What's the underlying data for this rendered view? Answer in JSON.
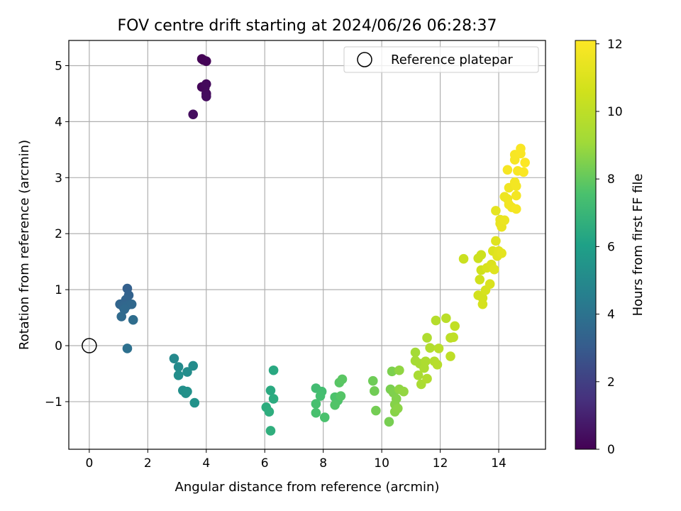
{
  "chart_data": {
    "type": "scatter",
    "title": "FOV centre drift starting at 2024/06/26 06:28:37",
    "xlabel": "Angular distance from reference (arcmin)",
    "ylabel": "Rotation from reference (arcmin)",
    "xlim": [
      -0.7,
      15.6
    ],
    "ylim": [
      -1.85,
      5.45
    ],
    "xticks": [
      0,
      2,
      4,
      6,
      8,
      10,
      12,
      14
    ],
    "yticks": [
      -1,
      0,
      1,
      2,
      3,
      4,
      5
    ],
    "xtick_labels": [
      "0",
      "2",
      "4",
      "6",
      "8",
      "10",
      "12",
      "14"
    ],
    "ytick_labels": [
      "−1",
      "0",
      "1",
      "2",
      "3",
      "4",
      "5"
    ],
    "grid": true,
    "legend": {
      "position": "top-right",
      "entries": [
        {
          "label": "Reference platepar",
          "marker": "open-circle"
        }
      ]
    },
    "reference_point": {
      "x": 0,
      "y": 0
    },
    "colorbar": {
      "label": "Hours from first FF file",
      "colormap": "viridis",
      "range": [
        0,
        12.1
      ],
      "ticks": [
        0,
        2,
        4,
        6,
        8,
        10,
        12
      ],
      "tick_labels": [
        "0",
        "2",
        "4",
        "6",
        "8",
        "10",
        "12"
      ]
    },
    "points": [
      {
        "x": 3.85,
        "y": 5.12,
        "c": 0.0
      },
      {
        "x": 3.9,
        "y": 5.1,
        "c": 0.05
      },
      {
        "x": 4.0,
        "y": 5.08,
        "c": 0.1
      },
      {
        "x": 3.85,
        "y": 4.62,
        "c": 0.15
      },
      {
        "x": 3.95,
        "y": 4.6,
        "c": 0.2
      },
      {
        "x": 4.0,
        "y": 4.67,
        "c": 0.25
      },
      {
        "x": 4.0,
        "y": 4.5,
        "c": 0.3
      },
      {
        "x": 4.0,
        "y": 4.45,
        "c": 0.35
      },
      {
        "x": 3.55,
        "y": 4.13,
        "c": 0.4
      },
      {
        "x": 1.3,
        "y": 1.02,
        "c": 3.2
      },
      {
        "x": 1.35,
        "y": 0.9,
        "c": 3.3
      },
      {
        "x": 1.25,
        "y": 0.82,
        "c": 3.35
      },
      {
        "x": 1.05,
        "y": 0.74,
        "c": 3.4
      },
      {
        "x": 1.15,
        "y": 0.7,
        "c": 3.45
      },
      {
        "x": 1.3,
        "y": 0.72,
        "c": 3.5
      },
      {
        "x": 1.45,
        "y": 0.74,
        "c": 3.55
      },
      {
        "x": 1.2,
        "y": 0.65,
        "c": 3.6
      },
      {
        "x": 1.1,
        "y": 0.52,
        "c": 3.65
      },
      {
        "x": 1.5,
        "y": 0.46,
        "c": 3.75
      },
      {
        "x": 1.3,
        "y": -0.05,
        "c": 3.9
      },
      {
        "x": 2.9,
        "y": -0.23,
        "c": 5.0
      },
      {
        "x": 3.05,
        "y": -0.38,
        "c": 5.05
      },
      {
        "x": 3.55,
        "y": -0.36,
        "c": 5.1
      },
      {
        "x": 3.35,
        "y": -0.47,
        "c": 5.15
      },
      {
        "x": 3.05,
        "y": -0.53,
        "c": 5.2
      },
      {
        "x": 3.2,
        "y": -0.8,
        "c": 5.25
      },
      {
        "x": 3.3,
        "y": -0.85,
        "c": 5.3
      },
      {
        "x": 3.35,
        "y": -0.82,
        "c": 5.35
      },
      {
        "x": 3.6,
        "y": -1.02,
        "c": 5.4
      },
      {
        "x": 6.3,
        "y": -0.44,
        "c": 6.4
      },
      {
        "x": 6.2,
        "y": -0.8,
        "c": 6.45
      },
      {
        "x": 6.3,
        "y": -0.95,
        "c": 6.5
      },
      {
        "x": 6.05,
        "y": -1.1,
        "c": 6.55
      },
      {
        "x": 6.15,
        "y": -1.18,
        "c": 6.6
      },
      {
        "x": 6.2,
        "y": -1.52,
        "c": 6.65
      },
      {
        "x": 7.75,
        "y": -0.76,
        "c": 7.3
      },
      {
        "x": 7.95,
        "y": -0.82,
        "c": 7.35
      },
      {
        "x": 7.9,
        "y": -0.9,
        "c": 7.4
      },
      {
        "x": 7.75,
        "y": -1.04,
        "c": 7.45
      },
      {
        "x": 7.75,
        "y": -1.2,
        "c": 7.5
      },
      {
        "x": 8.05,
        "y": -1.28,
        "c": 7.55
      },
      {
        "x": 8.4,
        "y": -0.92,
        "c": 7.6
      },
      {
        "x": 8.5,
        "y": -0.98,
        "c": 7.65
      },
      {
        "x": 8.4,
        "y": -1.06,
        "c": 7.7
      },
      {
        "x": 8.6,
        "y": -0.9,
        "c": 7.75
      },
      {
        "x": 8.55,
        "y": -0.66,
        "c": 7.8
      },
      {
        "x": 8.65,
        "y": -0.6,
        "c": 7.85
      },
      {
        "x": 9.7,
        "y": -0.63,
        "c": 8.2
      },
      {
        "x": 9.75,
        "y": -0.81,
        "c": 8.25
      },
      {
        "x": 9.8,
        "y": -1.16,
        "c": 8.3
      },
      {
        "x": 10.25,
        "y": -1.36,
        "c": 8.35
      },
      {
        "x": 10.3,
        "y": -0.78,
        "c": 8.4
      },
      {
        "x": 10.35,
        "y": -0.46,
        "c": 8.45
      },
      {
        "x": 10.4,
        "y": -0.84,
        "c": 8.5
      },
      {
        "x": 10.5,
        "y": -0.95,
        "c": 8.55
      },
      {
        "x": 10.45,
        "y": -1.05,
        "c": 8.6
      },
      {
        "x": 10.45,
        "y": -1.18,
        "c": 8.65
      },
      {
        "x": 10.55,
        "y": -1.12,
        "c": 8.7
      },
      {
        "x": 10.6,
        "y": -0.78,
        "c": 8.75
      },
      {
        "x": 10.6,
        "y": -0.44,
        "c": 8.8
      },
      {
        "x": 10.75,
        "y": -0.82,
        "c": 8.85
      },
      {
        "x": 11.15,
        "y": -0.12,
        "c": 9.2
      },
      {
        "x": 11.15,
        "y": -0.27,
        "c": 9.25
      },
      {
        "x": 11.3,
        "y": -0.32,
        "c": 9.3
      },
      {
        "x": 11.25,
        "y": -0.53,
        "c": 9.35
      },
      {
        "x": 11.35,
        "y": -0.69,
        "c": 9.4
      },
      {
        "x": 11.45,
        "y": -0.4,
        "c": 9.45
      },
      {
        "x": 11.5,
        "y": -0.28,
        "c": 9.5
      },
      {
        "x": 11.55,
        "y": 0.14,
        "c": 9.55
      },
      {
        "x": 11.55,
        "y": -0.59,
        "c": 9.6
      },
      {
        "x": 11.65,
        "y": -0.04,
        "c": 9.65
      },
      {
        "x": 11.8,
        "y": -0.28,
        "c": 9.7
      },
      {
        "x": 11.85,
        "y": 0.45,
        "c": 9.75
      },
      {
        "x": 11.9,
        "y": -0.34,
        "c": 9.8
      },
      {
        "x": 11.95,
        "y": -0.05,
        "c": 9.85
      },
      {
        "x": 12.2,
        "y": 0.49,
        "c": 9.9
      },
      {
        "x": 12.35,
        "y": 0.14,
        "c": 9.95
      },
      {
        "x": 12.35,
        "y": -0.19,
        "c": 10.0
      },
      {
        "x": 12.45,
        "y": 0.15,
        "c": 10.05
      },
      {
        "x": 12.5,
        "y": 0.35,
        "c": 10.1
      },
      {
        "x": 12.8,
        "y": 1.55,
        "c": 10.4
      },
      {
        "x": 13.3,
        "y": 1.56,
        "c": 10.45
      },
      {
        "x": 13.4,
        "y": 1.62,
        "c": 10.5
      },
      {
        "x": 13.4,
        "y": 1.35,
        "c": 10.55
      },
      {
        "x": 13.35,
        "y": 1.18,
        "c": 10.6
      },
      {
        "x": 13.3,
        "y": 0.9,
        "c": 10.65
      },
      {
        "x": 13.45,
        "y": 0.85,
        "c": 10.7
      },
      {
        "x": 13.45,
        "y": 0.74,
        "c": 10.75
      },
      {
        "x": 13.55,
        "y": 0.99,
        "c": 10.8
      },
      {
        "x": 13.6,
        "y": 1.39,
        "c": 10.85
      },
      {
        "x": 13.7,
        "y": 1.1,
        "c": 10.9
      },
      {
        "x": 13.75,
        "y": 1.45,
        "c": 10.95
      },
      {
        "x": 13.8,
        "y": 1.69,
        "c": 11.0
      },
      {
        "x": 13.85,
        "y": 1.36,
        "c": 11.05
      },
      {
        "x": 13.9,
        "y": 1.87,
        "c": 11.1
      },
      {
        "x": 13.95,
        "y": 1.6,
        "c": 11.15
      },
      {
        "x": 14.0,
        "y": 1.69,
        "c": 11.2
      },
      {
        "x": 14.1,
        "y": 1.65,
        "c": 11.25
      },
      {
        "x": 13.9,
        "y": 2.41,
        "c": 11.3
      },
      {
        "x": 14.05,
        "y": 2.18,
        "c": 11.35
      },
      {
        "x": 14.05,
        "y": 2.25,
        "c": 11.4
      },
      {
        "x": 14.1,
        "y": 2.12,
        "c": 11.45
      },
      {
        "x": 14.2,
        "y": 2.24,
        "c": 11.5
      },
      {
        "x": 14.2,
        "y": 2.66,
        "c": 11.55
      },
      {
        "x": 14.3,
        "y": 2.62,
        "c": 11.6
      },
      {
        "x": 14.35,
        "y": 2.82,
        "c": 11.65
      },
      {
        "x": 14.35,
        "y": 2.52,
        "c": 11.7
      },
      {
        "x": 14.45,
        "y": 2.47,
        "c": 11.72
      },
      {
        "x": 14.55,
        "y": 2.92,
        "c": 11.75
      },
      {
        "x": 14.6,
        "y": 2.85,
        "c": 11.78
      },
      {
        "x": 14.6,
        "y": 2.68,
        "c": 11.8
      },
      {
        "x": 14.6,
        "y": 2.44,
        "c": 11.82
      },
      {
        "x": 14.3,
        "y": 3.14,
        "c": 11.85
      },
      {
        "x": 14.55,
        "y": 3.32,
        "c": 11.88
      },
      {
        "x": 14.55,
        "y": 3.41,
        "c": 11.9
      },
      {
        "x": 14.65,
        "y": 3.12,
        "c": 11.93
      },
      {
        "x": 14.75,
        "y": 3.52,
        "c": 11.95
      },
      {
        "x": 14.75,
        "y": 3.43,
        "c": 11.97
      },
      {
        "x": 14.85,
        "y": 3.1,
        "c": 12.0
      },
      {
        "x": 14.9,
        "y": 3.27,
        "c": 12.05
      }
    ]
  }
}
